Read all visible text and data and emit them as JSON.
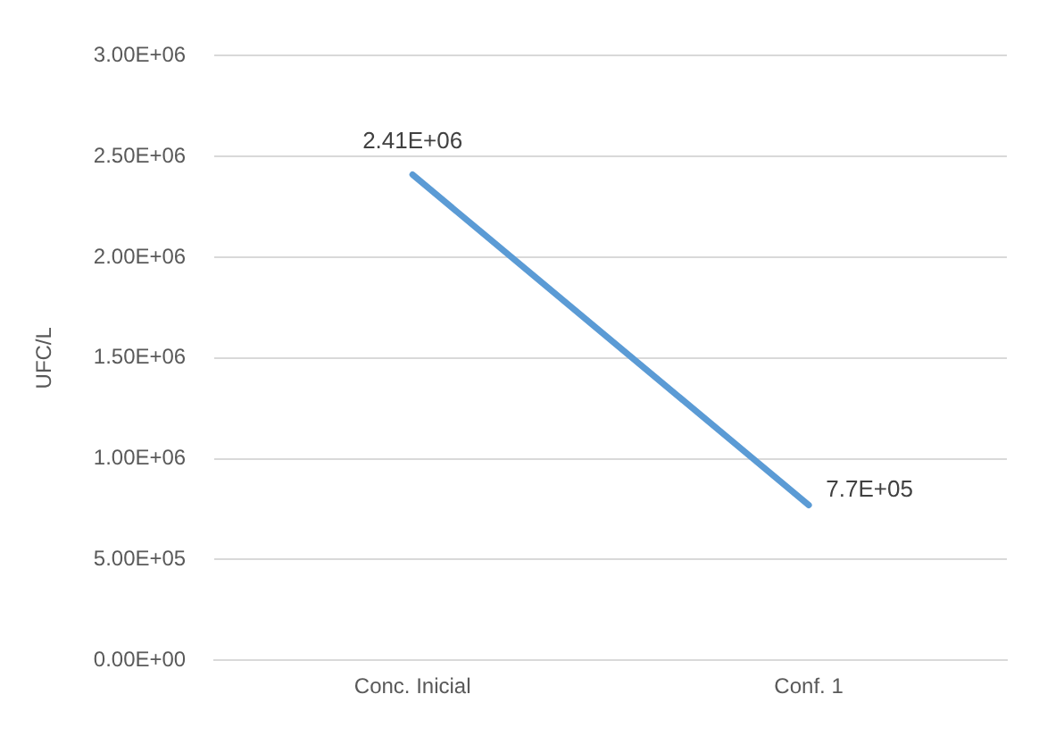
{
  "chart_data": {
    "type": "line",
    "ylabel": "UFC/L",
    "categories": [
      "Conc. Inicial",
      "Conf. 1"
    ],
    "series": [
      {
        "color": "#5b9bd5",
        "values": [
          2410000,
          770000
        ],
        "value_labels": [
          "2.41E+06",
          "7.7E+05"
        ]
      }
    ],
    "ylim": [
      0,
      3000000
    ],
    "yticks": [
      {
        "value": 0,
        "label": "0.00E+00"
      },
      {
        "value": 500000,
        "label": "5.00E+05"
      },
      {
        "value": 1000000,
        "label": "1.00E+06"
      },
      {
        "value": 1500000,
        "label": "1.50E+06"
      },
      {
        "value": 2000000,
        "label": "2.00E+06"
      },
      {
        "value": 2500000,
        "label": "2.50E+06"
      },
      {
        "value": 3000000,
        "label": "3.00E+06"
      }
    ],
    "grid": "y",
    "legend": false,
    "marker": "none",
    "line_style": "solid"
  }
}
